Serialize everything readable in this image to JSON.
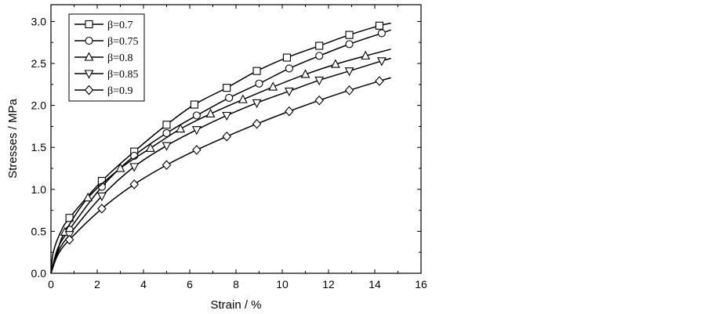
{
  "chart_data": {
    "type": "line",
    "xlabel": "Strain / %",
    "ylabel": "Stresses / MPa",
    "xlim": [
      0,
      16
    ],
    "ylim": [
      0,
      3.2
    ],
    "xticks": [
      0,
      2,
      4,
      6,
      8,
      10,
      12,
      14,
      16
    ],
    "yticks": [
      0.0,
      0.5,
      1.0,
      1.5,
      2.0,
      2.5,
      3.0
    ],
    "ytick_labels": [
      "0.0",
      "0.5",
      "1.0",
      "1.5",
      "2.0",
      "2.5",
      "3.0"
    ],
    "grid": false,
    "legend_position": "top-left",
    "series": [
      {
        "name": "β=0.7",
        "marker": "square",
        "line": [
          [
            0,
            0
          ],
          [
            0.1,
            0.25
          ],
          [
            0.4,
            0.48
          ],
          [
            0.8,
            0.66
          ],
          [
            2.2,
            1.1
          ],
          [
            3.6,
            1.45
          ],
          [
            5.0,
            1.77
          ],
          [
            6.2,
            2.01
          ],
          [
            7.6,
            2.21
          ],
          [
            8.9,
            2.41
          ],
          [
            10.2,
            2.57
          ],
          [
            11.6,
            2.71
          ],
          [
            12.9,
            2.84
          ],
          [
            14.2,
            2.95
          ],
          [
            14.7,
            2.98
          ]
        ],
        "markers": [
          [
            0.8,
            0.66
          ],
          [
            2.2,
            1.1
          ],
          [
            3.6,
            1.45
          ],
          [
            5.0,
            1.77
          ],
          [
            6.2,
            2.01
          ],
          [
            7.6,
            2.21
          ],
          [
            8.9,
            2.41
          ],
          [
            10.2,
            2.57
          ],
          [
            11.6,
            2.71
          ],
          [
            12.9,
            2.84
          ],
          [
            14.2,
            2.95
          ]
        ]
      },
      {
        "name": "β=0.75",
        "marker": "circle",
        "line": [
          [
            0,
            0
          ],
          [
            0.3,
            0.3
          ],
          [
            0.8,
            0.52
          ],
          [
            2.2,
            1.03
          ],
          [
            3.6,
            1.4
          ],
          [
            5.0,
            1.67
          ],
          [
            6.3,
            1.88
          ],
          [
            7.7,
            2.09
          ],
          [
            9.0,
            2.26
          ],
          [
            10.3,
            2.44
          ],
          [
            11.6,
            2.59
          ],
          [
            12.9,
            2.73
          ],
          [
            14.3,
            2.86
          ],
          [
            14.7,
            2.9
          ]
        ],
        "markers": [
          [
            0.8,
            0.52
          ],
          [
            2.2,
            1.03
          ],
          [
            3.6,
            1.4
          ],
          [
            5.0,
            1.67
          ],
          [
            6.3,
            1.88
          ],
          [
            7.7,
            2.09
          ],
          [
            9.0,
            2.26
          ],
          [
            10.3,
            2.44
          ],
          [
            11.6,
            2.59
          ],
          [
            12.9,
            2.73
          ],
          [
            14.3,
            2.86
          ]
        ]
      },
      {
        "name": "β=0.8",
        "marker": "triangle-up",
        "line": [
          [
            0,
            0
          ],
          [
            0.3,
            0.28
          ],
          [
            0.6,
            0.49
          ],
          [
            1.6,
            0.9
          ],
          [
            3.0,
            1.25
          ],
          [
            4.3,
            1.49
          ],
          [
            5.6,
            1.72
          ],
          [
            6.9,
            1.9
          ],
          [
            8.3,
            2.07
          ],
          [
            9.6,
            2.22
          ],
          [
            11.0,
            2.37
          ],
          [
            12.3,
            2.49
          ],
          [
            13.6,
            2.59
          ],
          [
            14.7,
            2.67
          ]
        ],
        "markers": [
          [
            0.6,
            0.49
          ],
          [
            1.6,
            0.9
          ],
          [
            3.0,
            1.25
          ],
          [
            4.3,
            1.49
          ],
          [
            5.6,
            1.72
          ],
          [
            6.9,
            1.9
          ],
          [
            8.3,
            2.07
          ],
          [
            9.6,
            2.22
          ],
          [
            11.0,
            2.37
          ],
          [
            12.3,
            2.49
          ],
          [
            13.6,
            2.59
          ]
        ]
      },
      {
        "name": "β=0.85",
        "marker": "triangle-down",
        "line": [
          [
            0,
            0
          ],
          [
            0.3,
            0.25
          ],
          [
            0.8,
            0.46
          ],
          [
            2.2,
            0.92
          ],
          [
            3.6,
            1.27
          ],
          [
            5.0,
            1.52
          ],
          [
            6.3,
            1.71
          ],
          [
            7.6,
            1.88
          ],
          [
            8.9,
            2.03
          ],
          [
            10.3,
            2.17
          ],
          [
            11.6,
            2.3
          ],
          [
            12.9,
            2.41
          ],
          [
            14.3,
            2.53
          ],
          [
            14.7,
            2.56
          ]
        ],
        "markers": [
          [
            0.8,
            0.46
          ],
          [
            2.2,
            0.92
          ],
          [
            3.6,
            1.27
          ],
          [
            5.0,
            1.52
          ],
          [
            6.3,
            1.71
          ],
          [
            7.6,
            1.88
          ],
          [
            8.9,
            2.03
          ],
          [
            10.3,
            2.17
          ],
          [
            11.6,
            2.3
          ],
          [
            12.9,
            2.41
          ],
          [
            14.3,
            2.53
          ]
        ]
      },
      {
        "name": "β=0.9",
        "marker": "diamond",
        "line": [
          [
            0,
            0
          ],
          [
            0.3,
            0.22
          ],
          [
            0.8,
            0.4
          ],
          [
            2.2,
            0.77
          ],
          [
            3.6,
            1.06
          ],
          [
            5.0,
            1.29
          ],
          [
            6.3,
            1.47
          ],
          [
            7.6,
            1.63
          ],
          [
            8.9,
            1.78
          ],
          [
            10.3,
            1.93
          ],
          [
            11.6,
            2.06
          ],
          [
            12.9,
            2.18
          ],
          [
            14.2,
            2.29
          ],
          [
            14.7,
            2.33
          ]
        ],
        "markers": [
          [
            0.8,
            0.4
          ],
          [
            2.2,
            0.77
          ],
          [
            3.6,
            1.06
          ],
          [
            5.0,
            1.29
          ],
          [
            6.3,
            1.47
          ],
          [
            7.6,
            1.63
          ],
          [
            8.9,
            1.78
          ],
          [
            10.3,
            1.93
          ],
          [
            11.6,
            2.06
          ],
          [
            12.9,
            2.18
          ],
          [
            14.2,
            2.29
          ]
        ]
      }
    ]
  }
}
